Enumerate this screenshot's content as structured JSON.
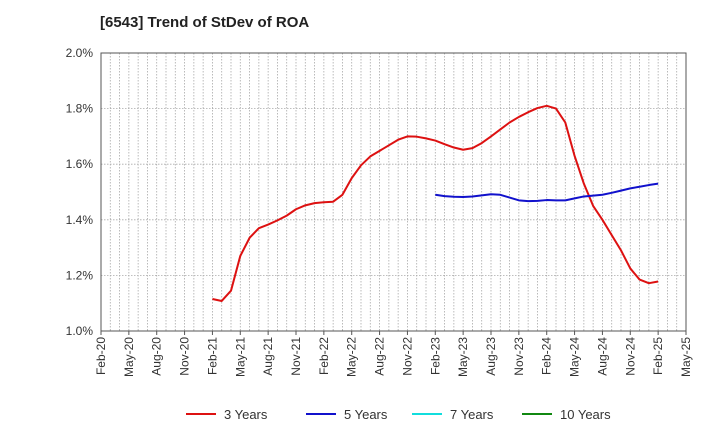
{
  "chart_data": {
    "type": "line",
    "title": "[6543]  Trend of StDev of ROA",
    "xlabel": "",
    "ylabel": "",
    "x_ticks": [
      "Feb-20",
      "May-20",
      "Aug-20",
      "Nov-20",
      "Feb-21",
      "May-21",
      "Aug-21",
      "Nov-21",
      "Feb-22",
      "May-22",
      "Aug-22",
      "Nov-22",
      "Feb-23",
      "May-23",
      "Aug-23",
      "Nov-23",
      "Feb-24",
      "May-24",
      "Aug-24",
      "Nov-24",
      "Feb-25",
      "May-25"
    ],
    "y_ticks": [
      "1.0%",
      "1.2%",
      "1.4%",
      "1.6%",
      "1.8%",
      "2.0%"
    ],
    "ylim": [
      1.0,
      2.0
    ],
    "grid": true,
    "legend_position": "bottom",
    "series": [
      {
        "name": "3 Years",
        "color": "#dd1111",
        "points": [
          [
            "Feb-21",
            1.115
          ],
          [
            "Mar-21",
            1.108
          ],
          [
            "Apr-21",
            1.145
          ],
          [
            "May-21",
            1.27
          ],
          [
            "Jun-21",
            1.335
          ],
          [
            "Jul-21",
            1.37
          ],
          [
            "Aug-21",
            1.383
          ],
          [
            "Sep-21",
            1.398
          ],
          [
            "Oct-21",
            1.415
          ],
          [
            "Nov-21",
            1.438
          ],
          [
            "Dec-21",
            1.452
          ],
          [
            "Jan-22",
            1.46
          ],
          [
            "Feb-22",
            1.463
          ],
          [
            "Mar-22",
            1.465
          ],
          [
            "Apr-22",
            1.49
          ],
          [
            "May-22",
            1.55
          ],
          [
            "Jun-22",
            1.596
          ],
          [
            "Jul-22",
            1.628
          ],
          [
            "Aug-22",
            1.648
          ],
          [
            "Sep-22",
            1.668
          ],
          [
            "Oct-22",
            1.688
          ],
          [
            "Nov-22",
            1.7
          ],
          [
            "Dec-22",
            1.699
          ],
          [
            "Jan-23",
            1.693
          ],
          [
            "Feb-23",
            1.685
          ],
          [
            "Mar-23",
            1.672
          ],
          [
            "Apr-23",
            1.66
          ],
          [
            "May-23",
            1.652
          ],
          [
            "Jun-23",
            1.658
          ],
          [
            "Jul-23",
            1.676
          ],
          [
            "Aug-23",
            1.7
          ],
          [
            "Sep-23",
            1.725
          ],
          [
            "Oct-23",
            1.75
          ],
          [
            "Nov-23",
            1.77
          ],
          [
            "Dec-23",
            1.787
          ],
          [
            "Jan-24",
            1.802
          ],
          [
            "Feb-24",
            1.81
          ],
          [
            "Mar-24",
            1.8
          ],
          [
            "Apr-24",
            1.75
          ],
          [
            "May-24",
            1.63
          ],
          [
            "Jun-24",
            1.53
          ],
          [
            "Jul-24",
            1.45
          ],
          [
            "Aug-24",
            1.4
          ],
          [
            "Sep-24",
            1.345
          ],
          [
            "Oct-24",
            1.29
          ],
          [
            "Nov-24",
            1.225
          ],
          [
            "Dec-24",
            1.185
          ],
          [
            "Jan-25",
            1.172
          ],
          [
            "Feb-25",
            1.178
          ]
        ]
      },
      {
        "name": "5 Years",
        "color": "#1111cc",
        "points": [
          [
            "Feb-23",
            1.49
          ],
          [
            "Mar-23",
            1.485
          ],
          [
            "Apr-23",
            1.483
          ],
          [
            "May-23",
            1.482
          ],
          [
            "Jun-23",
            1.484
          ],
          [
            "Jul-23",
            1.488
          ],
          [
            "Aug-23",
            1.492
          ],
          [
            "Sep-23",
            1.49
          ],
          [
            "Oct-23",
            1.48
          ],
          [
            "Nov-23",
            1.47
          ],
          [
            "Dec-23",
            1.467
          ],
          [
            "Jan-24",
            1.468
          ],
          [
            "Feb-24",
            1.471
          ],
          [
            "Mar-24",
            1.47
          ],
          [
            "Apr-24",
            1.47
          ],
          [
            "May-24",
            1.477
          ],
          [
            "Jun-24",
            1.484
          ],
          [
            "Jul-24",
            1.487
          ],
          [
            "Aug-24",
            1.49
          ],
          [
            "Sep-24",
            1.497
          ],
          [
            "Oct-24",
            1.505
          ],
          [
            "Nov-24",
            1.513
          ],
          [
            "Dec-24",
            1.519
          ],
          [
            "Jan-25",
            1.525
          ],
          [
            "Feb-25",
            1.53
          ]
        ]
      },
      {
        "name": "7 Years",
        "color": "#11dddd",
        "points": []
      },
      {
        "name": "10 Years",
        "color": "#118811",
        "points": []
      }
    ]
  }
}
